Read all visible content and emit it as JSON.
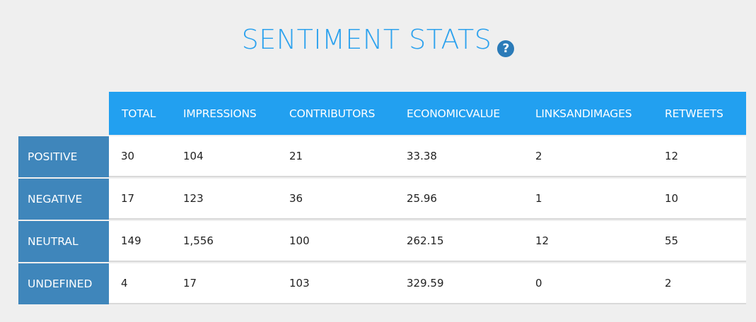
{
  "title": "SENTIMENT STATS",
  "help_icon": {
    "glyph": "?",
    "icon": "help-icon"
  },
  "colors": {
    "title": "#2da2ee",
    "header_bg": "#22a0f0",
    "row_label_bg": "#3f86bb",
    "help_icon_bg": "#2b7bb8",
    "page_bg": "#efefef"
  },
  "table": {
    "columns": [
      "TOTAL",
      "IMPRESSIONS",
      "CONTRIBUTORS",
      "ECONOMICVALUE",
      "LINKSANDIMAGES",
      "RETWEETS"
    ],
    "rows": [
      {
        "label": "POSITIVE",
        "values": [
          "30",
          "104",
          "21",
          "33.38",
          "2",
          "12"
        ]
      },
      {
        "label": "NEGATIVE",
        "values": [
          "17",
          "123",
          "36",
          "25.96",
          "1",
          "10"
        ]
      },
      {
        "label": "NEUTRAL",
        "values": [
          "149",
          "1,556",
          "100",
          "262.15",
          "12",
          "55"
        ]
      },
      {
        "label": "UNDEFINED",
        "values": [
          "4",
          "17",
          "103",
          "329.59",
          "0",
          "2"
        ]
      }
    ]
  }
}
